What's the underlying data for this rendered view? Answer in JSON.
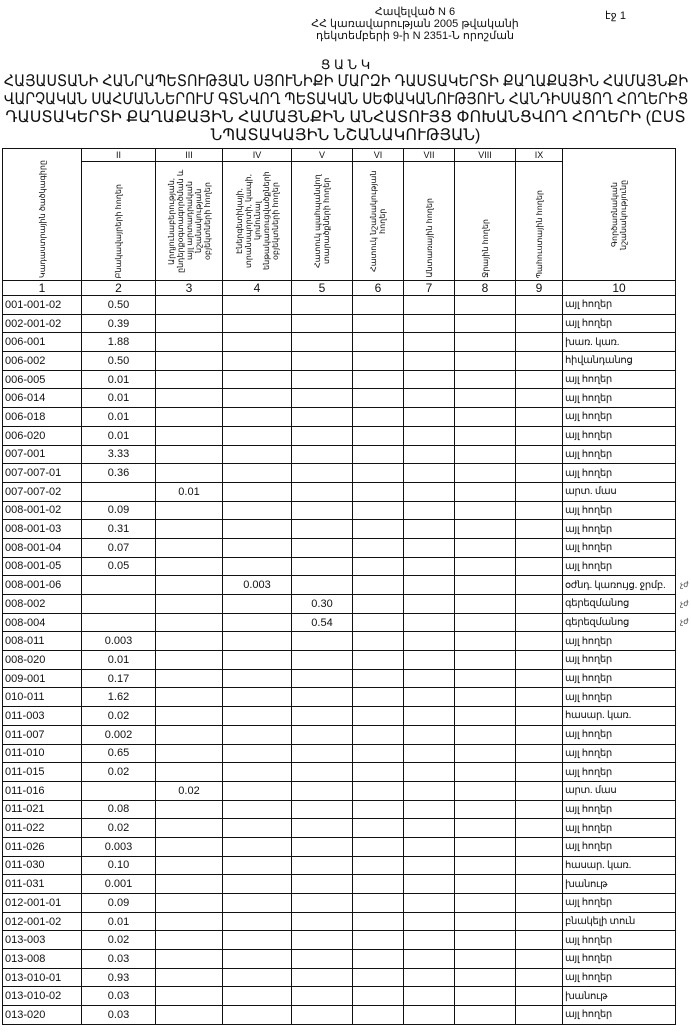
{
  "annex": {
    "line1": "Հավելված N 6",
    "line2": "ՀՀ կառավարության 2005 թվականի",
    "line3": "դեկտեմբերի 9-ի N 2351-Ն որոշման"
  },
  "page_label": "էջ 1",
  "title": {
    "heading": "Ց Ա Ն Կ",
    "line1": "ՀԱՅԱՍՏԱՆԻ ՀԱՆՐԱՊԵՏՈՒԹՅԱՆ ՍՅՈՒՆԻՔԻ ՄԱՐԶԻ ԴԱՍՏԱԿԵՐՏԻ ՔԱՂԱՔԱՅԻՆ ՀԱՄԱՅՆՔԻ",
    "line2": "ՎԱՐՉԱԿԱՆ ՍԱՀՄԱՆՆԵՐՈՒՄ ԳՏՆՎՈՂ ՊԵՏԱԿԱՆ ՍԵՓԱԿԱՆՈՒԹՅՈՒՆ ՀԱՆԴԻՍԱՑՈՂ ՀՈՂԵՐԻՑ",
    "line3": "ԴԱՍՏԱԿԵՐՏԻ ՔԱՂԱՔԱՅԻՆ ՀԱՄԱՅՆՔԻՆ ԱՆՀԱՏՈՒՅՑ ՓՈԽԱՆՑՎՈՂ ՀՈՂԵՐԻ (ԸՍՏ",
    "line4": "ՆՊԱՏԱԿԱՅԻՆ ՆՇԱՆԱԿՈՒԹՅԱՆ)"
  },
  "table": {
    "roman": [
      "",
      "II",
      "III",
      "IV",
      "V",
      "VI",
      "VII",
      "VIII",
      "IX",
      ""
    ],
    "headers": [
      "Կադաստրային ծածկագիրը",
      "Բնակավայրերի հողեր",
      "Արդյունաբերության, ընդերքօգտագործման և այլ արտադրական նշանակության օբյեկտների հողեր",
      "Էներգետիկայի, տրանսպորտի, կապի, կոմունալ ենթակառուցվածքների օբյեկտների հողեր",
      "Հատուկ պահպանվող տարածքների հողեր",
      "Հատուկ նշանակության հողեր",
      "Անտառային հողեր",
      "Ջրային հողեր",
      "Պահուստային հողեր",
      "Գործառնական նշանակությունը"
    ],
    "numbers": [
      "1",
      "2",
      "3",
      "4",
      "5",
      "6",
      "7",
      "8",
      "9",
      "10"
    ],
    "rows": [
      {
        "code": "001-001-02",
        "col": 2,
        "value": "0.50",
        "use": "այլ հողեր"
      },
      {
        "code": "002-001-02",
        "col": 2,
        "value": "0.39",
        "use": "այլ հողեր"
      },
      {
        "code": "006-001",
        "col": 2,
        "value": "1.88",
        "use": "խառ. կառ."
      },
      {
        "code": "006-002",
        "col": 2,
        "value": "0.50",
        "use": "հիվանդանոց"
      },
      {
        "code": "006-005",
        "col": 2,
        "value": "0.01",
        "use": "այլ հողեր"
      },
      {
        "code": "006-014",
        "col": 2,
        "value": "0.01",
        "use": "այլ հողեր"
      },
      {
        "code": "006-018",
        "col": 2,
        "value": "0.01",
        "use": "այլ հողեր"
      },
      {
        "code": "006-020",
        "col": 2,
        "value": "0.01",
        "use": "այլ հողեր"
      },
      {
        "code": "007-001",
        "col": 2,
        "value": "3.33",
        "use": "այլ հողեր"
      },
      {
        "code": "007-007-01",
        "col": 2,
        "value": "0.36",
        "use": "այլ հողեր"
      },
      {
        "code": "007-007-02",
        "col": 3,
        "value": "0.01",
        "use": "արտ. մաս"
      },
      {
        "code": "008-001-02",
        "col": 2,
        "value": "0.09",
        "use": "այլ հողեր"
      },
      {
        "code": "008-001-03",
        "col": 2,
        "value": "0.31",
        "use": "այլ հողեր"
      },
      {
        "code": "008-001-04",
        "col": 2,
        "value": "0.07",
        "use": "այլ հողեր"
      },
      {
        "code": "008-001-05",
        "col": 2,
        "value": "0.05",
        "use": "այլ հողեր"
      },
      {
        "code": "008-001-06",
        "col": 4,
        "value": "0.003",
        "use": "օժնդ. կառույց. ջրմբ.",
        "note": "չժ"
      },
      {
        "code": "008-002",
        "col": 5,
        "value": "0.30",
        "use": "գերեզմանոց",
        "note": "չժ"
      },
      {
        "code": "008-004",
        "col": 5,
        "value": "0.54",
        "use": "գերեզմանոց",
        "note": "չժ"
      },
      {
        "code": "008-011",
        "col": 2,
        "value": "0.003",
        "use": "այլ հողեր"
      },
      {
        "code": "008-020",
        "col": 2,
        "value": "0.01",
        "use": "այլ հողեր"
      },
      {
        "code": "009-001",
        "col": 2,
        "value": "0.17",
        "use": "այլ հողեր"
      },
      {
        "code": "010-011",
        "col": 2,
        "value": "1.62",
        "use": "այլ հողեր"
      },
      {
        "code": "011-003",
        "col": 2,
        "value": "0.02",
        "use": "հասար. կառ."
      },
      {
        "code": "011-007",
        "col": 2,
        "value": "0.002",
        "use": "այլ հողեր"
      },
      {
        "code": "011-010",
        "col": 2,
        "value": "0.65",
        "use": "այլ հողեր"
      },
      {
        "code": "011-015",
        "col": 2,
        "value": "0.02",
        "use": "այլ հողեր"
      },
      {
        "code": "011-016",
        "col": 3,
        "value": "0.02",
        "use": "արտ. մաս"
      },
      {
        "code": "011-021",
        "col": 2,
        "value": "0.08",
        "use": "այլ հողեր"
      },
      {
        "code": "011-022",
        "col": 2,
        "value": "0.02",
        "use": "այլ հողեր"
      },
      {
        "code": "011-026",
        "col": 2,
        "value": "0.003",
        "use": "այլ հողեր"
      },
      {
        "code": "011-030",
        "col": 2,
        "value": "0.10",
        "use": "հասար. կառ."
      },
      {
        "code": "011-031",
        "col": 2,
        "value": "0.001",
        "use": "խանութ"
      },
      {
        "code": "012-001-01",
        "col": 2,
        "value": "0.09",
        "use": "այլ հողեր"
      },
      {
        "code": "012-001-02",
        "col": 2,
        "value": "0.01",
        "use": "բնակելի տուն"
      },
      {
        "code": "013-003",
        "col": 2,
        "value": "0.02",
        "use": "այլ հողեր"
      },
      {
        "code": "013-008",
        "col": 2,
        "value": "0.03",
        "use": "այլ հողեր"
      },
      {
        "code": "013-010-01",
        "col": 2,
        "value": "0.93",
        "use": "այլ հողեր"
      },
      {
        "code": "013-010-02",
        "col": 2,
        "value": "0.03",
        "use": "խանութ"
      },
      {
        "code": "013-020",
        "col": 2,
        "value": "0.03",
        "use": "այլ հողեր"
      }
    ]
  }
}
